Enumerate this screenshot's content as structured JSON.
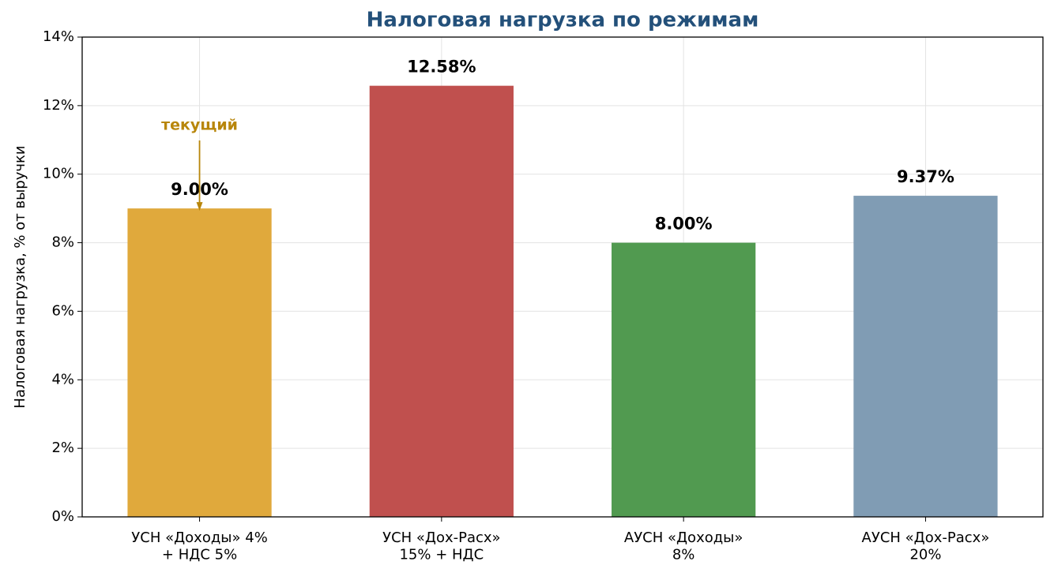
{
  "chart_data": {
    "type": "bar",
    "title": "Налоговая нагрузка по режимам",
    "y_label": "Налоговая нагрузка, % от выручки",
    "categories": [
      "УСН «Доходы» 4%\n+ НДС 5%",
      "УСН «Дох-Расх»\n15% + НДС",
      "АУСН «Доходы»\n8%",
      "АУСН «Дох-Расх»\n20%"
    ],
    "values": [
      9.0,
      12.58,
      8.0,
      9.37
    ],
    "value_labels": [
      "9.00%",
      "12.58%",
      "8.00%",
      "9.37%"
    ],
    "colors": [
      "#e0a93c",
      "#c0504e",
      "#519a50",
      "#809cb4"
    ],
    "annotation": "текущий",
    "ylim": [
      0,
      14
    ],
    "yticks": [
      {
        "value": 0,
        "label": "0%"
      },
      {
        "value": 2,
        "label": "2%"
      },
      {
        "value": 4,
        "label": "4%"
      },
      {
        "value": 6,
        "label": "6%"
      },
      {
        "value": 8,
        "label": "8%"
      },
      {
        "value": 10,
        "label": "10%"
      },
      {
        "value": 12,
        "label": "12%"
      },
      {
        "value": 14,
        "label": "14%"
      }
    ],
    "grid": true
  }
}
